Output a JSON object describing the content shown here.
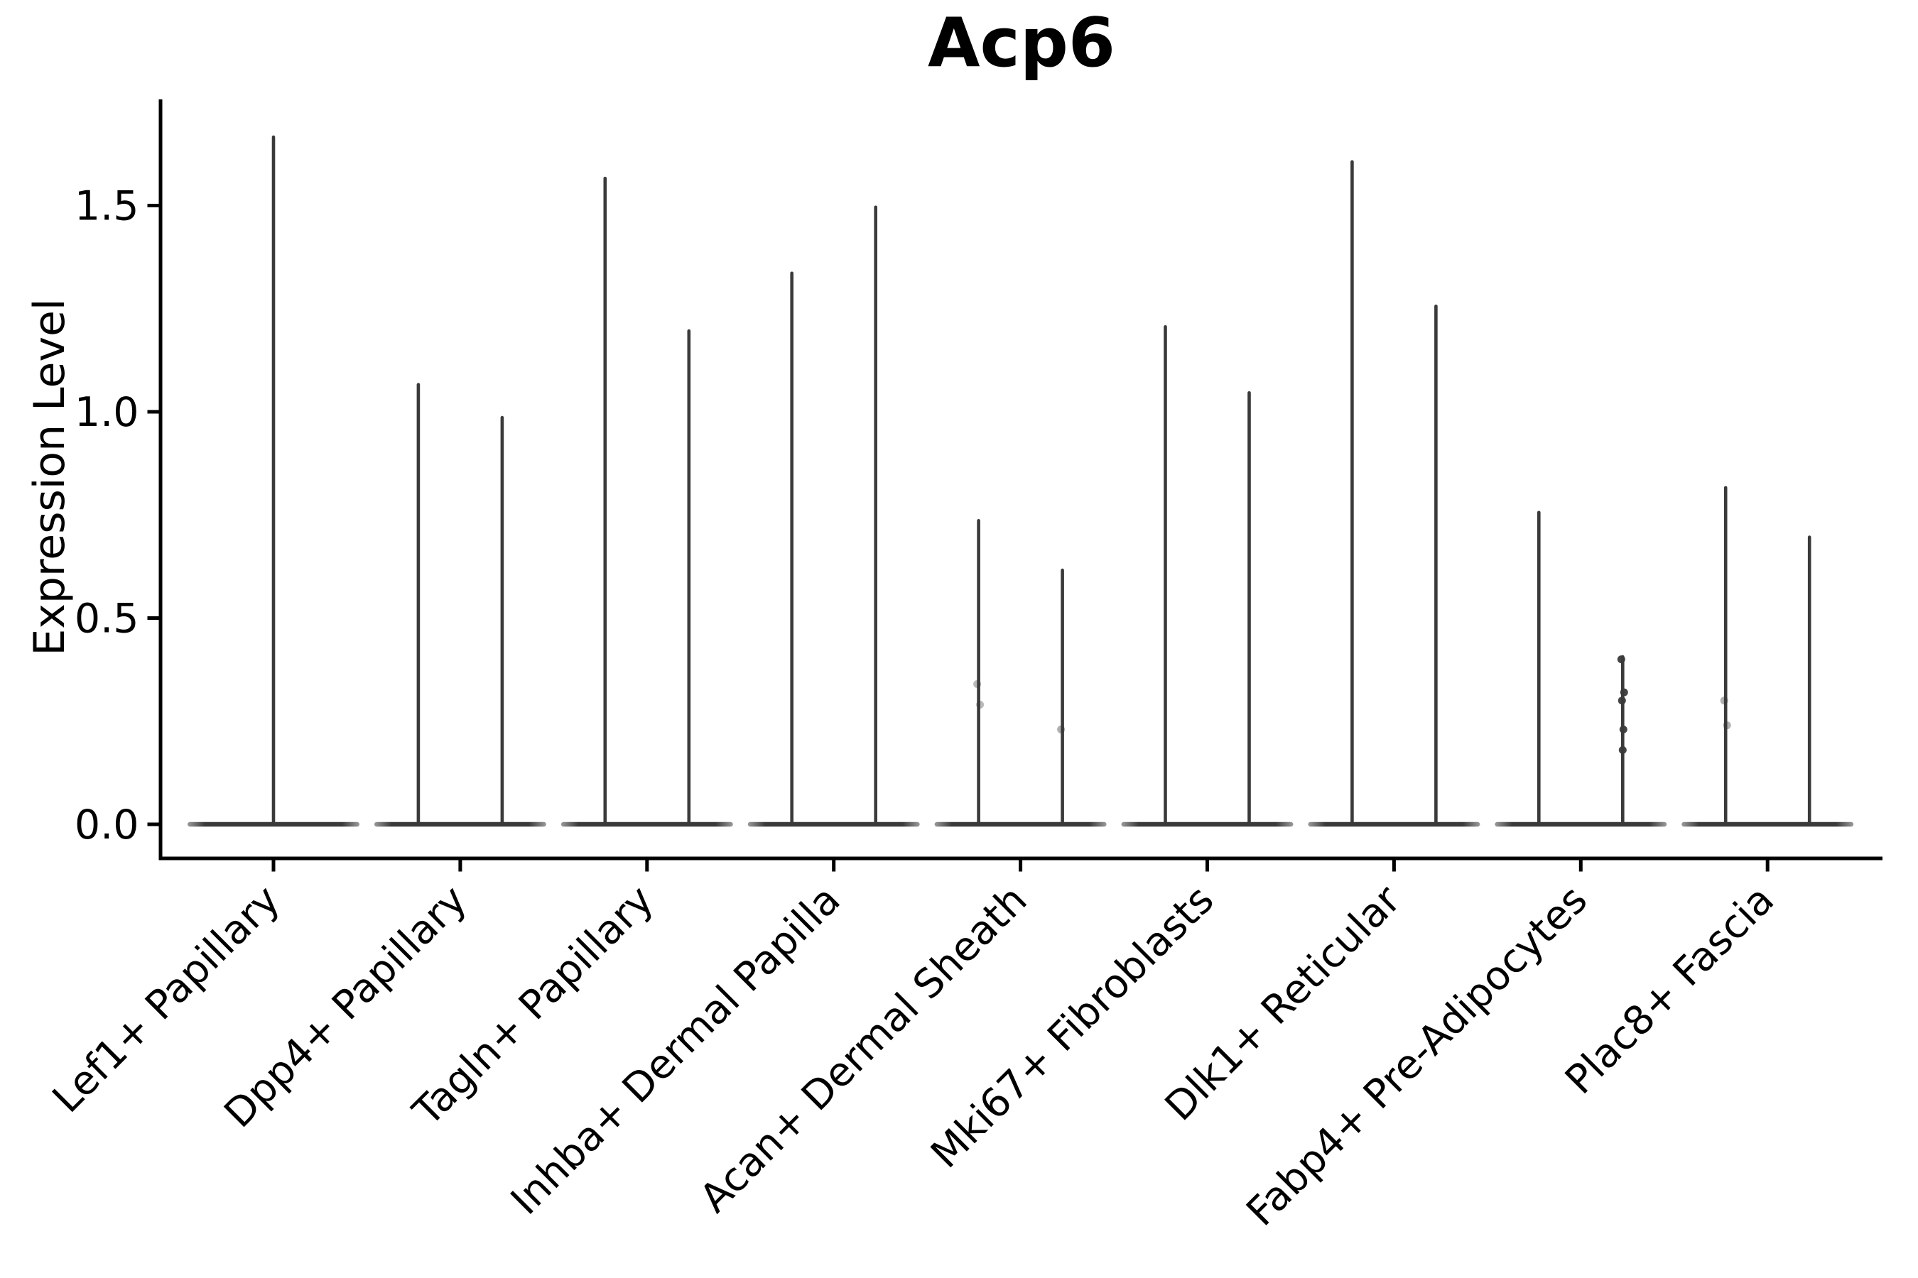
{
  "figure": {
    "title": "Acp6",
    "ylabel": "Expression Level"
  },
  "chart_data": {
    "type": "violin",
    "title": "Acp6",
    "xlabel": "",
    "ylabel": "Expression Level",
    "ylim": [
      -0.08,
      1.76
    ],
    "yticks": [
      0.0,
      0.5,
      1.0,
      1.5
    ],
    "ytick_labels": [
      "0.0",
      "0.5",
      "1.0",
      "1.5"
    ],
    "x_tick_label_rotation": 45,
    "grid": false,
    "legend": "none",
    "violin_color": "#3a3a3a",
    "axis_color": "#000000",
    "categories": [
      "Lef1+ Papillary",
      "Dpp4+ Papillary",
      "Tagln+ Papillary",
      "Inhba+ Dermal Papilla",
      "Acan+ Dermal Sheath",
      "Mki67+ Fibroblasts",
      "Dlk1+ Reticular",
      "Fabp4+ Pre-Adipocytes",
      "Plac8+ Fascia"
    ],
    "violins": [
      {
        "category": "Lef1+ Papillary",
        "spikes": [
          {
            "side": "center",
            "max": 1.67
          }
        ]
      },
      {
        "category": "Dpp4+ Papillary",
        "spikes": [
          {
            "side": "left",
            "max": 1.07
          },
          {
            "side": "right",
            "max": 0.99
          }
        ]
      },
      {
        "category": "Tagln+ Papillary",
        "spikes": [
          {
            "side": "left",
            "max": 1.57
          },
          {
            "side": "right",
            "max": 1.2
          }
        ]
      },
      {
        "category": "Inhba+ Dermal Papilla",
        "spikes": [
          {
            "side": "left",
            "max": 1.34
          },
          {
            "side": "right",
            "max": 1.5
          }
        ]
      },
      {
        "category": "Acan+ Dermal Sheath",
        "spikes": [
          {
            "side": "left",
            "max": 0.74
          },
          {
            "side": "right",
            "max": 0.62
          }
        ]
      },
      {
        "category": "Mki67+ Fibroblasts",
        "spikes": [
          {
            "side": "left",
            "max": 1.21
          },
          {
            "side": "right",
            "max": 1.05
          }
        ]
      },
      {
        "category": "Dlk1+ Reticular",
        "spikes": [
          {
            "side": "left",
            "max": 1.61
          },
          {
            "side": "right",
            "max": 1.26
          }
        ]
      },
      {
        "category": "Fabp4+ Pre-Adipocytes",
        "spikes": [
          {
            "side": "left",
            "max": 0.76
          },
          {
            "side": "right",
            "max": 0.41
          }
        ]
      },
      {
        "category": "Plac8+ Fascia",
        "spikes": [
          {
            "side": "left",
            "max": 0.82
          },
          {
            "side": "right",
            "max": 0.7
          }
        ]
      }
    ],
    "jitter_points": [
      {
        "category": "Fabp4+ Pre-Adipocytes",
        "side": "right",
        "values": [
          0.4,
          0.32,
          0.3,
          0.23,
          0.18
        ],
        "alpha": 0.95
      },
      {
        "category": "Acan+ Dermal Sheath",
        "side": "left",
        "values": [
          0.34,
          0.29
        ],
        "alpha": 0.35
      },
      {
        "category": "Acan+ Dermal Sheath",
        "side": "right",
        "values": [
          0.23
        ],
        "alpha": 0.4
      },
      {
        "category": "Plac8+ Fascia",
        "side": "left",
        "values": [
          0.3,
          0.24
        ],
        "alpha": 0.4
      }
    ]
  }
}
